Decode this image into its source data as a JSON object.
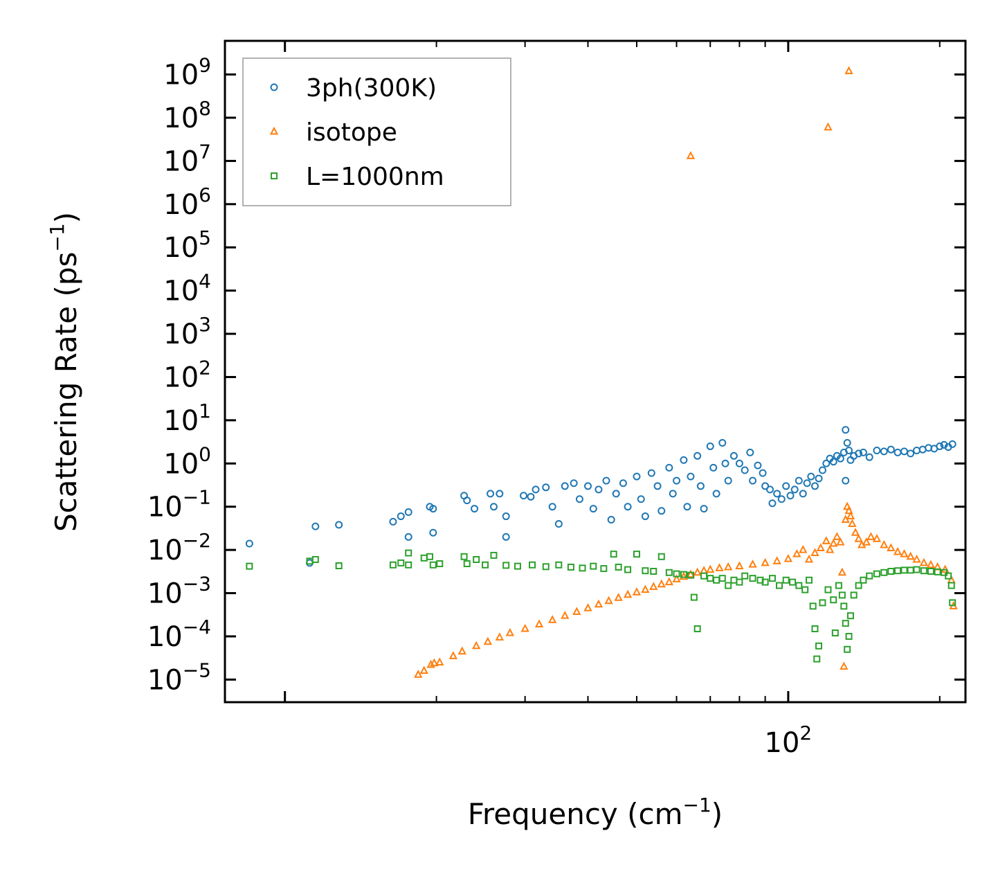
{
  "chart_data": {
    "type": "scatter",
    "title": "",
    "xlabel": "Frequency (cm",
    "xlabel_sup": "−1",
    "xlabel_tail": ")",
    "ylabel": "Scattering Rate (ps",
    "ylabel_sup": "−1",
    "ylabel_tail": ")",
    "xscale": "log",
    "yscale": "log",
    "xlim": [
      7.6,
      225
    ],
    "ylim": [
      3e-06,
      6000000000.0
    ],
    "x_ticks": [
      {
        "value": 100,
        "base": "10",
        "exp": "2"
      }
    ],
    "y_ticks": [
      {
        "value": 1e-05,
        "base": "10",
        "exp": "−5"
      },
      {
        "value": 0.0001,
        "base": "10",
        "exp": "−4"
      },
      {
        "value": 0.001,
        "base": "10",
        "exp": "−3"
      },
      {
        "value": 0.01,
        "base": "10",
        "exp": "−2"
      },
      {
        "value": 0.1,
        "base": "10",
        "exp": "−1"
      },
      {
        "value": 1,
        "base": "10",
        "exp": "0"
      },
      {
        "value": 10,
        "base": "10",
        "exp": "1"
      },
      {
        "value": 100,
        "base": "10",
        "exp": "2"
      },
      {
        "value": 1000,
        "base": "10",
        "exp": "3"
      },
      {
        "value": 10000,
        "base": "10",
        "exp": "4"
      },
      {
        "value": 100000,
        "base": "10",
        "exp": "5"
      },
      {
        "value": 1000000,
        "base": "10",
        "exp": "6"
      },
      {
        "value": 10000000,
        "base": "10",
        "exp": "7"
      },
      {
        "value": 100000000,
        "base": "10",
        "exp": "8"
      },
      {
        "value": 1000000000,
        "base": "10",
        "exp": "9"
      }
    ],
    "legend_position": "top-left",
    "series": [
      {
        "name": "3ph(300K)",
        "marker": "circle",
        "color": "#1f77b4",
        "points": [
          [
            8.5,
            0.014
          ],
          [
            11.2,
            0.005
          ],
          [
            11.5,
            0.035
          ],
          [
            12.8,
            0.038
          ],
          [
            16.4,
            0.045
          ],
          [
            17.0,
            0.06
          ],
          [
            17.6,
            0.075
          ],
          [
            17.6,
            0.02
          ],
          [
            19.4,
            0.1
          ],
          [
            19.7,
            0.09
          ],
          [
            19.7,
            0.025
          ],
          [
            22.7,
            0.18
          ],
          [
            23.0,
            0.14
          ],
          [
            23.8,
            0.09
          ],
          [
            25.6,
            0.2
          ],
          [
            26.0,
            0.1
          ],
          [
            26.7,
            0.2
          ],
          [
            27.5,
            0.06
          ],
          [
            27.5,
            0.02
          ],
          [
            29.8,
            0.18
          ],
          [
            30.8,
            0.17
          ],
          [
            31.5,
            0.25
          ],
          [
            33.0,
            0.28
          ],
          [
            34.0,
            0.1
          ],
          [
            35.0,
            0.04
          ],
          [
            36.0,
            0.3
          ],
          [
            37.5,
            0.35
          ],
          [
            38.5,
            0.15
          ],
          [
            40.0,
            0.3
          ],
          [
            41.0,
            0.09
          ],
          [
            42.0,
            0.25
          ],
          [
            43.5,
            0.4
          ],
          [
            44.5,
            0.05
          ],
          [
            45.5,
            0.2
          ],
          [
            47.0,
            0.35
          ],
          [
            48.0,
            0.1
          ],
          [
            50.0,
            0.5
          ],
          [
            51.0,
            0.15
          ],
          [
            52.0,
            0.06
          ],
          [
            53.5,
            0.6
          ],
          [
            55.0,
            0.3
          ],
          [
            56.0,
            0.08
          ],
          [
            58.0,
            0.8
          ],
          [
            59.0,
            0.2
          ],
          [
            60.0,
            0.4
          ],
          [
            62.0,
            1.2
          ],
          [
            63.0,
            0.1
          ],
          [
            64.0,
            0.5
          ],
          [
            66.0,
            1.5
          ],
          [
            67.0,
            0.3
          ],
          [
            68.0,
            0.09
          ],
          [
            70.0,
            2.5
          ],
          [
            71.0,
            0.8
          ],
          [
            72.0,
            0.2
          ],
          [
            74.0,
            3.0
          ],
          [
            75.0,
            1.0
          ],
          [
            76.0,
            0.4
          ],
          [
            78.0,
            1.5
          ],
          [
            80.0,
            1.0
          ],
          [
            82.0,
            0.7
          ],
          [
            84.0,
            1.8
          ],
          [
            85.0,
            0.4
          ],
          [
            87.0,
            0.9
          ],
          [
            89.0,
            0.6
          ],
          [
            90.0,
            0.3
          ],
          [
            92.0,
            0.25
          ],
          [
            93.0,
            0.12
          ],
          [
            95.0,
            0.2
          ],
          [
            97.0,
            0.15
          ],
          [
            99.0,
            0.3
          ],
          [
            101.0,
            0.18
          ],
          [
            103.0,
            0.25
          ],
          [
            105.0,
            0.4
          ],
          [
            107.0,
            0.2
          ],
          [
            109.0,
            0.35
          ],
          [
            111.0,
            0.5
          ],
          [
            113.0,
            0.3
          ],
          [
            115.0,
            0.45
          ],
          [
            117.0,
            0.7
          ],
          [
            119.0,
            1.0
          ],
          [
            121.0,
            1.3
          ],
          [
            123.0,
            1.1
          ],
          [
            125.0,
            1.5
          ],
          [
            127.0,
            1.3
          ],
          [
            129.0,
            1.8
          ],
          [
            130.0,
            6.0
          ],
          [
            131.0,
            3.0
          ],
          [
            132.0,
            2.0
          ],
          [
            133.0,
            1.2
          ],
          [
            130.0,
            0.4
          ],
          [
            135.0,
            1.5
          ],
          [
            138.0,
            1.7
          ],
          [
            141.0,
            1.8
          ],
          [
            145.0,
            1.4
          ],
          [
            150.0,
            2.0
          ],
          [
            155.0,
            1.9
          ],
          [
            160.0,
            2.1
          ],
          [
            165.0,
            1.8
          ],
          [
            170.0,
            1.9
          ],
          [
            175.0,
            1.7
          ],
          [
            180.0,
            2.0
          ],
          [
            185.0,
            2.1
          ],
          [
            190.0,
            2.3
          ],
          [
            195.0,
            2.2
          ],
          [
            200.0,
            2.5
          ],
          [
            204.0,
            2.7
          ],
          [
            208.0,
            2.4
          ],
          [
            212.0,
            2.8
          ]
        ]
      },
      {
        "name": "isotope",
        "marker": "triangle",
        "color": "#ff7f0e",
        "points": [
          [
            64.0,
            13000000.0
          ],
          [
            120.0,
            60000000.0
          ],
          [
            132.0,
            1200000000.0
          ],
          [
            18.4,
            1.3e-05
          ],
          [
            18.9,
            1.6e-05
          ],
          [
            19.5,
            2.2e-05
          ],
          [
            19.8,
            2.4e-05
          ],
          [
            20.3,
            2.5e-05
          ],
          [
            21.6,
            3.5e-05
          ],
          [
            22.5,
            4.5e-05
          ],
          [
            24.0,
            6e-05
          ],
          [
            25.3,
            7.5e-05
          ],
          [
            26.7,
            9.5e-05
          ],
          [
            28.0,
            0.00012
          ],
          [
            30.0,
            0.00015
          ],
          [
            32.0,
            0.00019
          ],
          [
            34.0,
            0.00024
          ],
          [
            36.0,
            0.0003
          ],
          [
            38.0,
            0.00037
          ],
          [
            40.0,
            0.00045
          ],
          [
            42.0,
            0.00055
          ],
          [
            44.0,
            0.00066
          ],
          [
            46.0,
            0.00078
          ],
          [
            48.0,
            0.00092
          ],
          [
            50.0,
            0.00105
          ],
          [
            52.0,
            0.0012
          ],
          [
            54.0,
            0.0014
          ],
          [
            56.0,
            0.0016
          ],
          [
            58.0,
            0.0018
          ],
          [
            60.0,
            0.0021
          ],
          [
            62.0,
            0.0024
          ],
          [
            64.0,
            0.0027
          ],
          [
            66.0,
            0.003
          ],
          [
            68.0,
            0.0033
          ],
          [
            70.0,
            0.0035
          ],
          [
            73.0,
            0.0038
          ],
          [
            76.0,
            0.004
          ],
          [
            80.0,
            0.0042
          ],
          [
            85.0,
            0.0046
          ],
          [
            90.0,
            0.005
          ],
          [
            95.0,
            0.0055
          ],
          [
            100.0,
            0.0062
          ],
          [
            104.0,
            0.008
          ],
          [
            107.0,
            0.01
          ],
          [
            110.0,
            0.006
          ],
          [
            113.0,
            0.0085
          ],
          [
            116.0,
            0.011
          ],
          [
            119.0,
            0.016
          ],
          [
            121.0,
            0.01
          ],
          [
            123.0,
            0.014
          ],
          [
            125.0,
            0.02
          ],
          [
            127.0,
            0.015
          ],
          [
            128.0,
            0.003
          ],
          [
            129.0,
            2e-05
          ],
          [
            130.0,
            0.05
          ],
          [
            131.0,
            0.1
          ],
          [
            132.0,
            0.08
          ],
          [
            133.0,
            0.06
          ],
          [
            134.0,
            0.04
          ],
          [
            136.0,
            0.025
          ],
          [
            138.0,
            0.018
          ],
          [
            140.0,
            0.013
          ],
          [
            143.0,
            0.015
          ],
          [
            146.0,
            0.02
          ],
          [
            150.0,
            0.018
          ],
          [
            155.0,
            0.013
          ],
          [
            160.0,
            0.011
          ],
          [
            165.0,
            0.009
          ],
          [
            170.0,
            0.008
          ],
          [
            175.0,
            0.007
          ],
          [
            180.0,
            0.006
          ],
          [
            186.0,
            0.005
          ],
          [
            192.0,
            0.0045
          ],
          [
            198.0,
            0.004
          ],
          [
            205.0,
            0.0035
          ],
          [
            211.0,
            0.002
          ],
          [
            213.0,
            0.0005
          ]
        ]
      },
      {
        "name": "L=1000nm",
        "marker": "square",
        "color": "#2ca02c",
        "points": [
          [
            8.5,
            0.0042
          ],
          [
            11.2,
            0.0055
          ],
          [
            11.5,
            0.006
          ],
          [
            12.8,
            0.0043
          ],
          [
            16.4,
            0.0045
          ],
          [
            17.0,
            0.005
          ],
          [
            17.6,
            0.0045
          ],
          [
            17.6,
            0.0085
          ],
          [
            18.9,
            0.0065
          ],
          [
            19.4,
            0.007
          ],
          [
            19.7,
            0.0045
          ],
          [
            20.3,
            0.0048
          ],
          [
            22.7,
            0.007
          ],
          [
            23.0,
            0.0048
          ],
          [
            24.0,
            0.006
          ],
          [
            25.0,
            0.0045
          ],
          [
            26.0,
            0.0075
          ],
          [
            27.5,
            0.0044
          ],
          [
            29.0,
            0.0042
          ],
          [
            31.0,
            0.0045
          ],
          [
            33.0,
            0.0041
          ],
          [
            35.0,
            0.0045
          ],
          [
            37.0,
            0.004
          ],
          [
            39.0,
            0.0038
          ],
          [
            41.0,
            0.0042
          ],
          [
            43.0,
            0.0037
          ],
          [
            45.0,
            0.008
          ],
          [
            46.0,
            0.004
          ],
          [
            48.0,
            0.0035
          ],
          [
            50.0,
            0.008
          ],
          [
            52.0,
            0.0033
          ],
          [
            54.0,
            0.0032
          ],
          [
            56.0,
            0.007
          ],
          [
            58.0,
            0.003
          ],
          [
            60.0,
            0.0028
          ],
          [
            62.0,
            0.0027
          ],
          [
            64.0,
            0.0026
          ],
          [
            65.0,
            0.0008
          ],
          [
            66.0,
            0.00015
          ],
          [
            68.0,
            0.0025
          ],
          [
            70.0,
            0.0022
          ],
          [
            72.0,
            0.002
          ],
          [
            74.0,
            0.0022
          ],
          [
            76.0,
            0.0015
          ],
          [
            78.0,
            0.002
          ],
          [
            80.0,
            0.0018
          ],
          [
            82.0,
            0.0025
          ],
          [
            85.0,
            0.0022
          ],
          [
            88.0,
            0.002
          ],
          [
            90.0,
            0.0018
          ],
          [
            93.0,
            0.0022
          ],
          [
            96.0,
            0.0015
          ],
          [
            99.0,
            0.002
          ],
          [
            102.0,
            0.0018
          ],
          [
            105.0,
            0.0015
          ],
          [
            108.0,
            0.0012
          ],
          [
            110.0,
            0.002
          ],
          [
            112.0,
            0.0005
          ],
          [
            113.0,
            0.00015
          ],
          [
            114.0,
            3e-05
          ],
          [
            115.0,
            6e-05
          ],
          [
            117.0,
            0.0006
          ],
          [
            120.0,
            0.0012
          ],
          [
            123.0,
            0.0007
          ],
          [
            124.0,
            0.00012
          ],
          [
            126.0,
            0.0015
          ],
          [
            128.0,
            0.0009
          ],
          [
            129.0,
            0.0005
          ],
          [
            130.0,
            0.0002
          ],
          [
            131.0,
            5e-05
          ],
          [
            132.0,
            0.0001
          ],
          [
            133.0,
            0.0003
          ],
          [
            135.0,
            0.0009
          ],
          [
            138.0,
            0.0015
          ],
          [
            141.0,
            0.002
          ],
          [
            145.0,
            0.0025
          ],
          [
            150.0,
            0.0028
          ],
          [
            155.0,
            0.003
          ],
          [
            160.0,
            0.0032
          ],
          [
            165.0,
            0.0033
          ],
          [
            170.0,
            0.0034
          ],
          [
            175.0,
            0.0034
          ],
          [
            180.0,
            0.0035
          ],
          [
            186.0,
            0.0033
          ],
          [
            192.0,
            0.0032
          ],
          [
            198.0,
            0.0031
          ],
          [
            204.0,
            0.003
          ],
          [
            208.0,
            0.0025
          ],
          [
            211.0,
            0.0015
          ],
          [
            212.0,
            0.0006
          ]
        ]
      }
    ]
  }
}
